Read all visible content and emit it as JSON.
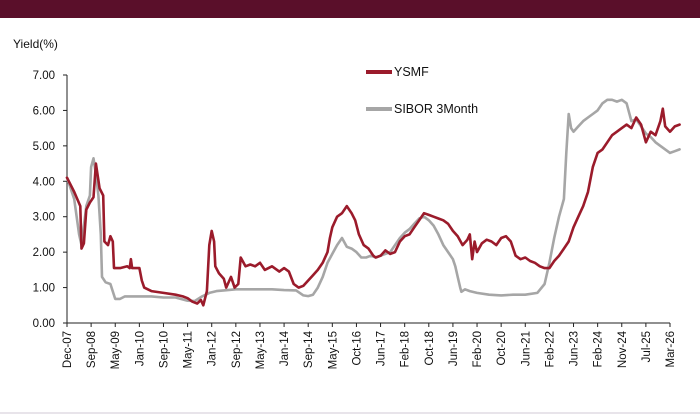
{
  "colors": {
    "header_bar": "#5a0f2a",
    "ysmf": "#9b1b2b",
    "sibor": "#a6a6a6",
    "axis": "#222222"
  },
  "chart_data": {
    "type": "line",
    "title": "",
    "xlabel": "",
    "ylabel": "Yield(%)",
    "ylim": [
      0,
      7
    ],
    "y_ticks": [
      "0.00",
      "1.00",
      "2.00",
      "3.00",
      "4.00",
      "5.00",
      "6.00",
      "7.00"
    ],
    "x_tick_labels": [
      "Dec-07",
      "Sep-08",
      "May-09",
      "Jan-10",
      "Sep-10",
      "May-11",
      "Jan-12",
      "Sep-12",
      "May-13",
      "Jan-14",
      "Sep-14",
      "May-15",
      "Oct-16",
      "Jun-17",
      "Feb-18",
      "Oct-18",
      "Jun-19",
      "Feb-20",
      "Oct-20",
      "Jun-21",
      "Feb-22",
      "Jun-23",
      "Feb-24",
      "Nov-24",
      "Jul-25",
      "Mar-26"
    ],
    "grid": false,
    "legend": "top-right",
    "series": [
      {
        "name": "YSMF",
        "color": "#9b1b2b",
        "points": [
          [
            0,
            4.1
          ],
          [
            0.3,
            3.7
          ],
          [
            0.55,
            3.3
          ],
          [
            0.6,
            2.1
          ],
          [
            0.7,
            2.25
          ],
          [
            0.8,
            3.2
          ],
          [
            0.95,
            3.4
          ],
          [
            1.05,
            3.5
          ],
          [
            1.1,
            3.55
          ],
          [
            1.2,
            4.5
          ],
          [
            1.35,
            3.8
          ],
          [
            1.5,
            3.6
          ],
          [
            1.55,
            2.3
          ],
          [
            1.7,
            2.2
          ],
          [
            1.8,
            2.45
          ],
          [
            1.9,
            2.3
          ],
          [
            1.95,
            1.55
          ],
          [
            2.2,
            1.55
          ],
          [
            2.5,
            1.6
          ],
          [
            2.6,
            1.55
          ],
          [
            2.65,
            1.8
          ],
          [
            2.7,
            1.55
          ],
          [
            3.0,
            1.55
          ],
          [
            3.1,
            1.2
          ],
          [
            3.2,
            1.0
          ],
          [
            3.5,
            0.9
          ],
          [
            4.0,
            0.85
          ],
          [
            4.5,
            0.8
          ],
          [
            4.8,
            0.75
          ],
          [
            5.0,
            0.7
          ],
          [
            5.2,
            0.6
          ],
          [
            5.4,
            0.55
          ],
          [
            5.55,
            0.65
          ],
          [
            5.65,
            0.5
          ],
          [
            5.8,
            0.9
          ],
          [
            5.9,
            2.2
          ],
          [
            6.0,
            2.6
          ],
          [
            6.1,
            2.3
          ],
          [
            6.15,
            1.6
          ],
          [
            6.3,
            1.4
          ],
          [
            6.5,
            1.25
          ],
          [
            6.6,
            1.0
          ],
          [
            6.8,
            1.3
          ],
          [
            6.95,
            1.0
          ],
          [
            7.1,
            1.1
          ],
          [
            7.2,
            1.85
          ],
          [
            7.4,
            1.6
          ],
          [
            7.6,
            1.65
          ],
          [
            7.8,
            1.6
          ],
          [
            8.0,
            1.7
          ],
          [
            8.2,
            1.5
          ],
          [
            8.5,
            1.6
          ],
          [
            8.8,
            1.45
          ],
          [
            9.0,
            1.55
          ],
          [
            9.2,
            1.45
          ],
          [
            9.4,
            1.1
          ],
          [
            9.6,
            1.0
          ],
          [
            9.8,
            1.05
          ],
          [
            10.0,
            1.2
          ],
          [
            10.2,
            1.35
          ],
          [
            10.4,
            1.5
          ],
          [
            10.6,
            1.7
          ],
          [
            10.8,
            2.0
          ],
          [
            10.9,
            2.4
          ],
          [
            11.0,
            2.7
          ],
          [
            11.2,
            3.0
          ],
          [
            11.4,
            3.1
          ],
          [
            11.6,
            3.3
          ],
          [
            11.8,
            3.1
          ],
          [
            11.95,
            2.9
          ],
          [
            12.1,
            2.5
          ],
          [
            12.3,
            2.2
          ],
          [
            12.5,
            2.1
          ],
          [
            12.7,
            1.9
          ],
          [
            12.8,
            1.85
          ],
          [
            13.0,
            1.9
          ],
          [
            13.2,
            2.05
          ],
          [
            13.4,
            1.95
          ],
          [
            13.6,
            2.0
          ],
          [
            13.8,
            2.3
          ],
          [
            14.0,
            2.45
          ],
          [
            14.2,
            2.5
          ],
          [
            14.4,
            2.7
          ],
          [
            14.6,
            2.9
          ],
          [
            14.8,
            3.1
          ],
          [
            15.0,
            3.05
          ],
          [
            15.2,
            3.0
          ],
          [
            15.4,
            2.95
          ],
          [
            15.6,
            2.9
          ],
          [
            15.8,
            2.8
          ],
          [
            16.0,
            2.6
          ],
          [
            16.2,
            2.45
          ],
          [
            16.4,
            2.2
          ],
          [
            16.6,
            2.35
          ],
          [
            16.7,
            2.5
          ],
          [
            16.8,
            1.8
          ],
          [
            16.9,
            2.3
          ],
          [
            17.0,
            2.0
          ],
          [
            17.2,
            2.25
          ],
          [
            17.4,
            2.35
          ],
          [
            17.6,
            2.3
          ],
          [
            17.8,
            2.2
          ],
          [
            18.0,
            2.4
          ],
          [
            18.2,
            2.45
          ],
          [
            18.4,
            2.3
          ],
          [
            18.6,
            1.9
          ],
          [
            18.8,
            1.8
          ],
          [
            19.0,
            1.85
          ],
          [
            19.2,
            1.75
          ],
          [
            19.4,
            1.7
          ],
          [
            19.6,
            1.6
          ],
          [
            19.8,
            1.55
          ],
          [
            20.0,
            1.55
          ],
          [
            20.2,
            1.75
          ],
          [
            20.4,
            1.9
          ],
          [
            20.6,
            2.1
          ],
          [
            20.8,
            2.3
          ],
          [
            21.0,
            2.7
          ],
          [
            21.2,
            3.0
          ],
          [
            21.4,
            3.3
          ],
          [
            21.6,
            3.7
          ],
          [
            21.8,
            4.4
          ],
          [
            22.0,
            4.8
          ],
          [
            22.2,
            4.9
          ],
          [
            22.4,
            5.1
          ],
          [
            22.6,
            5.3
          ],
          [
            22.8,
            5.4
          ],
          [
            23.0,
            5.5
          ],
          [
            23.2,
            5.6
          ],
          [
            23.4,
            5.5
          ],
          [
            23.6,
            5.8
          ],
          [
            23.8,
            5.6
          ],
          [
            24.0,
            5.1
          ],
          [
            24.2,
            5.4
          ],
          [
            24.4,
            5.3
          ],
          [
            24.6,
            5.7
          ],
          [
            24.7,
            6.05
          ],
          [
            24.8,
            5.55
          ],
          [
            25.0,
            5.4
          ],
          [
            25.2,
            5.55
          ],
          [
            25.4,
            5.6
          ]
        ]
      },
      {
        "name": "SIBOR 3Month",
        "color": "#a6a6a6",
        "points": [
          [
            0,
            4.1
          ],
          [
            0.3,
            3.5
          ],
          [
            0.5,
            2.5
          ],
          [
            0.6,
            2.2
          ],
          [
            0.8,
            3.3
          ],
          [
            0.95,
            3.6
          ],
          [
            1.0,
            4.4
          ],
          [
            1.1,
            4.65
          ],
          [
            1.2,
            4.2
          ],
          [
            1.3,
            3.6
          ],
          [
            1.4,
            2.5
          ],
          [
            1.45,
            1.3
          ],
          [
            1.6,
            1.15
          ],
          [
            1.8,
            1.1
          ],
          [
            2.0,
            0.68
          ],
          [
            2.2,
            0.68
          ],
          [
            2.4,
            0.75
          ],
          [
            2.6,
            0.75
          ],
          [
            3.0,
            0.75
          ],
          [
            3.5,
            0.75
          ],
          [
            4.0,
            0.72
          ],
          [
            4.5,
            0.72
          ],
          [
            5.0,
            0.63
          ],
          [
            5.3,
            0.62
          ],
          [
            5.6,
            0.75
          ],
          [
            5.9,
            0.85
          ],
          [
            6.2,
            0.9
          ],
          [
            6.5,
            0.92
          ],
          [
            7.0,
            0.95
          ],
          [
            7.5,
            0.95
          ],
          [
            8.0,
            0.95
          ],
          [
            8.5,
            0.95
          ],
          [
            9.0,
            0.93
          ],
          [
            9.5,
            0.92
          ],
          [
            9.8,
            0.78
          ],
          [
            10.0,
            0.76
          ],
          [
            10.2,
            0.8
          ],
          [
            10.4,
            1.0
          ],
          [
            10.6,
            1.3
          ],
          [
            10.8,
            1.7
          ],
          [
            11.0,
            1.95
          ],
          [
            11.2,
            2.2
          ],
          [
            11.4,
            2.4
          ],
          [
            11.6,
            2.15
          ],
          [
            11.8,
            2.1
          ],
          [
            12.0,
            2.0
          ],
          [
            12.2,
            1.85
          ],
          [
            12.4,
            1.85
          ],
          [
            12.6,
            1.9
          ],
          [
            12.8,
            1.85
          ],
          [
            13.0,
            1.9
          ],
          [
            13.2,
            1.95
          ],
          [
            13.4,
            2.0
          ],
          [
            13.6,
            2.2
          ],
          [
            13.8,
            2.4
          ],
          [
            14.0,
            2.55
          ],
          [
            14.2,
            2.65
          ],
          [
            14.4,
            2.8
          ],
          [
            14.6,
            2.95
          ],
          [
            14.8,
            3.0
          ],
          [
            15.0,
            2.9
          ],
          [
            15.2,
            2.75
          ],
          [
            15.4,
            2.5
          ],
          [
            15.6,
            2.2
          ],
          [
            15.8,
            2.0
          ],
          [
            16.0,
            1.8
          ],
          [
            16.1,
            1.6
          ],
          [
            16.2,
            1.3
          ],
          [
            16.3,
            1.0
          ],
          [
            16.35,
            0.88
          ],
          [
            16.5,
            0.95
          ],
          [
            16.7,
            0.9
          ],
          [
            17.0,
            0.85
          ],
          [
            17.5,
            0.8
          ],
          [
            18.0,
            0.78
          ],
          [
            18.5,
            0.8
          ],
          [
            19.0,
            0.8
          ],
          [
            19.5,
            0.85
          ],
          [
            19.8,
            1.1
          ],
          [
            20.0,
            1.7
          ],
          [
            20.2,
            2.4
          ],
          [
            20.4,
            3.0
          ],
          [
            20.6,
            3.5
          ],
          [
            20.7,
            4.8
          ],
          [
            20.8,
            5.9
          ],
          [
            20.9,
            5.5
          ],
          [
            21.0,
            5.4
          ],
          [
            21.2,
            5.55
          ],
          [
            21.4,
            5.7
          ],
          [
            21.6,
            5.8
          ],
          [
            21.8,
            5.9
          ],
          [
            22.0,
            6.0
          ],
          [
            22.2,
            6.2
          ],
          [
            22.4,
            6.3
          ],
          [
            22.6,
            6.3
          ],
          [
            22.8,
            6.25
          ],
          [
            23.0,
            6.3
          ],
          [
            23.2,
            6.2
          ],
          [
            23.4,
            5.7
          ],
          [
            23.6,
            5.75
          ],
          [
            23.8,
            5.55
          ],
          [
            24.0,
            5.35
          ],
          [
            24.2,
            5.25
          ],
          [
            24.4,
            5.1
          ],
          [
            24.6,
            5.0
          ],
          [
            24.8,
            4.9
          ],
          [
            25.0,
            4.8
          ],
          [
            25.2,
            4.85
          ],
          [
            25.4,
            4.9
          ]
        ]
      }
    ]
  }
}
